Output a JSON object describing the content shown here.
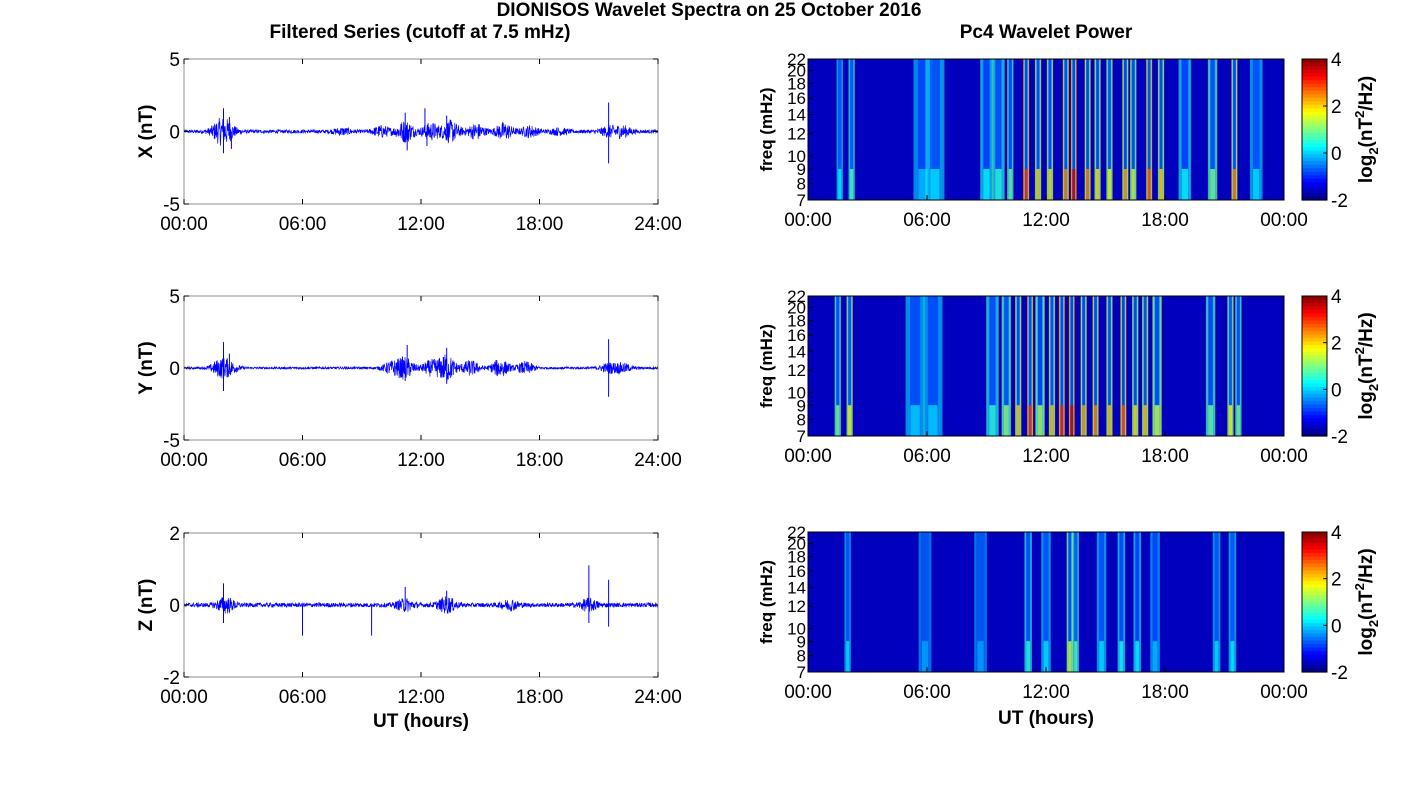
{
  "figure": {
    "title": "DIONISOS Wavelet Spectra on 25 October 2016",
    "left_column_title": "Filtered Series (cutoff at 7.5 mHz)",
    "right_column_title": "Pc4 Wavelet Power"
  },
  "colors": {
    "trace": "#0000ff",
    "axis": "#000000",
    "jet_low": "#00008f",
    "jet_high": "#800000"
  },
  "chart_data": [
    {
      "type": "line",
      "component": "X",
      "ylabel": "X (nT)",
      "xlabel": "",
      "xlim": [
        0,
        24
      ],
      "ylim": [
        -5,
        5
      ],
      "xticks": [
        "00:00",
        "06:00",
        "12:00",
        "18:00",
        "24:00"
      ],
      "yticks": [
        "5",
        "0",
        "-5"
      ],
      "baseline_noise": 0.12,
      "activity": [
        [
          1.8,
          0.6
        ],
        [
          2.2,
          0.5
        ],
        [
          8,
          0.2
        ],
        [
          10,
          0.35
        ],
        [
          11.2,
          0.7
        ],
        [
          12.5,
          0.55
        ],
        [
          13.5,
          0.7
        ],
        [
          14.8,
          0.5
        ],
        [
          16.2,
          0.55
        ],
        [
          17.5,
          0.35
        ],
        [
          19,
          0.2
        ],
        [
          21.5,
          0.3
        ],
        [
          22.2,
          0.35
        ]
      ],
      "spikes": [
        [
          2.0,
          1.6
        ],
        [
          2.0,
          -1.5
        ],
        [
          2.3,
          1.0
        ],
        [
          2.4,
          -1.2
        ],
        [
          11.2,
          1.3
        ],
        [
          11.3,
          -1.3
        ],
        [
          12.2,
          1.6
        ],
        [
          12.3,
          -1.0
        ],
        [
          13.3,
          1.1
        ],
        [
          21.5,
          2.0
        ],
        [
          21.5,
          -2.2
        ]
      ]
    },
    {
      "type": "line",
      "component": "Y",
      "ylabel": "Y (nT)",
      "xlabel": "",
      "xlim": [
        0,
        24
      ],
      "ylim": [
        -5,
        5
      ],
      "xticks": [
        "00:00",
        "06:00",
        "12:00",
        "18:00",
        "24:00"
      ],
      "yticks": [
        "5",
        "0",
        "-5"
      ],
      "baseline_noise": 0.08,
      "activity": [
        [
          1.8,
          0.5
        ],
        [
          2.3,
          0.4
        ],
        [
          10.5,
          0.4
        ],
        [
          11.2,
          0.7
        ],
        [
          12.5,
          0.5
        ],
        [
          13.3,
          0.9
        ],
        [
          14.5,
          0.5
        ],
        [
          16,
          0.6
        ],
        [
          17.3,
          0.4
        ],
        [
          21.5,
          0.3
        ],
        [
          22.2,
          0.3
        ]
      ],
      "spikes": [
        [
          2.0,
          1.8
        ],
        [
          2.0,
          -1.6
        ],
        [
          2.3,
          1.0
        ],
        [
          11.3,
          1.6
        ],
        [
          11.2,
          -0.9
        ],
        [
          13.3,
          1.4
        ],
        [
          13.3,
          -1.1
        ],
        [
          21.5,
          2.0
        ],
        [
          21.5,
          -2.0
        ]
      ]
    },
    {
      "type": "line",
      "component": "Z",
      "ylabel": "Z (nT)",
      "xlabel": "UT (hours)",
      "xlim": [
        0,
        24
      ],
      "ylim": [
        -2,
        2
      ],
      "xticks": [
        "00:00",
        "06:00",
        "12:00",
        "18:00",
        "24:00"
      ],
      "yticks": [
        "2",
        "0",
        "-2"
      ],
      "baseline_noise": 0.06,
      "activity": [
        [
          2.1,
          0.2
        ],
        [
          11.2,
          0.15
        ],
        [
          13.3,
          0.2
        ],
        [
          16.5,
          0.12
        ],
        [
          20.5,
          0.15
        ]
      ],
      "spikes": [
        [
          2.0,
          0.6
        ],
        [
          2.0,
          -0.5
        ],
        [
          6.0,
          -0.85
        ],
        [
          9.5,
          -0.85
        ],
        [
          11.2,
          0.5
        ],
        [
          13.3,
          0.4
        ],
        [
          20.5,
          1.1
        ],
        [
          20.5,
          -0.5
        ],
        [
          21.5,
          0.7
        ],
        [
          21.5,
          -0.6
        ]
      ]
    },
    {
      "type": "heatmap",
      "component": "X",
      "ylabel": "freq (mHz)",
      "xlabel": "",
      "xlim": [
        0,
        24
      ],
      "ylim": [
        7,
        22
      ],
      "xticks": [
        "00:00",
        "06:00",
        "12:00",
        "18:00",
        "00:00"
      ],
      "yticks": [
        "22",
        "20",
        "18",
        "16",
        "14",
        "12",
        "10",
        "9",
        "8",
        "7"
      ],
      "colorbar": {
        "label": "log2(nT²/Hz)",
        "label_base": "log",
        "label_sub": "2",
        "label_open": "(nT",
        "label_sup": "2",
        "label_close": "/Hz)",
        "range": [
          -2,
          4
        ],
        "ticks": [
          "4",
          "2",
          "0",
          "-2"
        ]
      },
      "events": [
        [
          1.6,
          0.7,
          0.1
        ],
        [
          2.2,
          1.2,
          0.1
        ],
        [
          5.8,
          0.4,
          0.3
        ],
        [
          6.4,
          0.6,
          0.3
        ],
        [
          9.0,
          0.8,
          0.2
        ],
        [
          9.6,
          1.0,
          0.2
        ],
        [
          10.2,
          1.4,
          0.1
        ],
        [
          11.0,
          3.5,
          0.08
        ],
        [
          11.6,
          2.5,
          0.1
        ],
        [
          12.2,
          2.4,
          0.1
        ],
        [
          13.0,
          3.0,
          0.1
        ],
        [
          13.4,
          4.0,
          0.08
        ],
        [
          14.1,
          3.0,
          0.1
        ],
        [
          14.6,
          2.4,
          0.1
        ],
        [
          15.2,
          2.2,
          0.1
        ],
        [
          16.0,
          2.8,
          0.1
        ],
        [
          16.4,
          2.0,
          0.1
        ],
        [
          17.2,
          3.2,
          0.1
        ],
        [
          17.8,
          2.5,
          0.1
        ],
        [
          19.0,
          0.8,
          0.2
        ],
        [
          20.4,
          1.5,
          0.15
        ],
        [
          21.5,
          3.0,
          0.1
        ],
        [
          22.6,
          0.6,
          0.2
        ]
      ]
    },
    {
      "type": "heatmap",
      "component": "Y",
      "ylabel": "freq (mHz)",
      "xlabel": "",
      "xlim": [
        0,
        24
      ],
      "ylim": [
        7,
        22
      ],
      "xticks": [
        "00:00",
        "06:00",
        "12:00",
        "18:00",
        "00:00"
      ],
      "yticks": [
        "22",
        "20",
        "18",
        "16",
        "14",
        "12",
        "10",
        "9",
        "8",
        "7"
      ],
      "colorbar": {
        "label": "log2(nT²/Hz)",
        "label_base": "log",
        "label_sub": "2",
        "label_open": "(nT",
        "label_sup": "2",
        "label_close": "/Hz)",
        "range": [
          -2,
          4
        ],
        "ticks": [
          "4",
          "2",
          "0",
          "-2"
        ]
      },
      "events": [
        [
          1.5,
          1.5,
          0.1
        ],
        [
          2.1,
          2.2,
          0.1
        ],
        [
          5.4,
          0.5,
          0.3
        ],
        [
          6.3,
          0.5,
          0.3
        ],
        [
          9.3,
          1.0,
          0.2
        ],
        [
          10.0,
          1.6,
          0.15
        ],
        [
          10.6,
          2.5,
          0.1
        ],
        [
          11.2,
          3.5,
          0.08
        ],
        [
          11.7,
          1.8,
          0.15
        ],
        [
          12.3,
          2.6,
          0.1
        ],
        [
          12.8,
          3.6,
          0.1
        ],
        [
          13.3,
          4.0,
          0.08
        ],
        [
          13.9,
          2.8,
          0.1
        ],
        [
          14.5,
          3.0,
          0.1
        ],
        [
          15.2,
          2.6,
          0.1
        ],
        [
          15.9,
          3.3,
          0.1
        ],
        [
          16.5,
          2.4,
          0.1
        ],
        [
          17.0,
          2.6,
          0.1
        ],
        [
          17.6,
          2.0,
          0.15
        ],
        [
          20.3,
          1.4,
          0.15
        ],
        [
          21.3,
          2.2,
          0.1
        ],
        [
          21.7,
          1.5,
          0.1
        ]
      ]
    },
    {
      "type": "heatmap",
      "component": "Z",
      "ylabel": "freq (mHz)",
      "xlabel": "UT (hours)",
      "xlim": [
        0,
        24
      ],
      "ylim": [
        7,
        22
      ],
      "xticks": [
        "00:00",
        "06:00",
        "12:00",
        "18:00",
        "00:00"
      ],
      "yticks": [
        "22",
        "20",
        "18",
        "16",
        "14",
        "12",
        "10",
        "9",
        "8",
        "7"
      ],
      "colorbar": {
        "label": "log2(nT²/Hz)",
        "label_base": "log",
        "label_sub": "2",
        "label_open": "(nT",
        "label_sup": "2",
        "label_close": "/Hz)",
        "range": [
          -2,
          4
        ],
        "ticks": [
          "4",
          "2",
          "0",
          "-2"
        ]
      },
      "events": [
        [
          2.0,
          0.6,
          0.1
        ],
        [
          5.9,
          0.2,
          0.2
        ],
        [
          8.7,
          0.2,
          0.2
        ],
        [
          11.1,
          1.0,
          0.12
        ],
        [
          12.0,
          0.6,
          0.15
        ],
        [
          13.2,
          2.0,
          0.1
        ],
        [
          13.5,
          1.2,
          0.1
        ],
        [
          14.8,
          0.6,
          0.15
        ],
        [
          15.8,
          0.9,
          0.12
        ],
        [
          16.6,
          0.8,
          0.12
        ],
        [
          17.5,
          0.4,
          0.15
        ],
        [
          20.6,
          0.6,
          0.12
        ],
        [
          21.4,
          0.7,
          0.12
        ]
      ]
    }
  ]
}
